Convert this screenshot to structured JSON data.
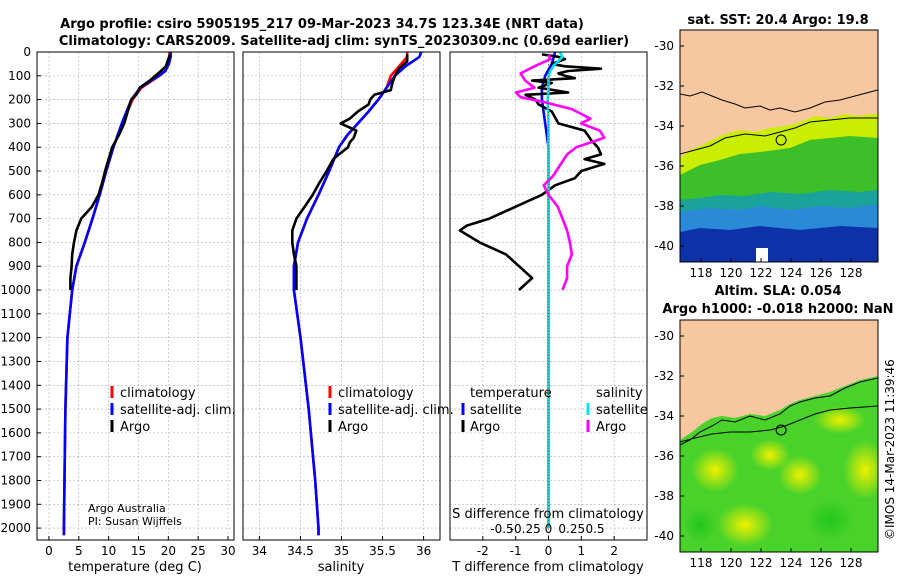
{
  "header": {
    "title_line1": "Argo profile: csiro 5905195_217 09-Mar-2023 34.7S 123.34E (NRT data)",
    "title_line2": "Climatology: CARS2009. Satellite-adj clim: synTS_20230309.nc (0.69d earlier)"
  },
  "depth_ticks": [
    0,
    100,
    200,
    300,
    400,
    500,
    600,
    700,
    800,
    900,
    1000,
    1100,
    1200,
    1300,
    1400,
    1500,
    1600,
    1700,
    1800,
    1900,
    2000
  ],
  "credits": {
    "line1": "Argo Australia",
    "line2": "PI: Susan Wijffels"
  },
  "colors": {
    "climatology": "#ff0000",
    "satellite": "#0000ff",
    "argo": "#000000",
    "argo_salinity_diff": "#ff00ff",
    "sat_salinity_diff": "#00e5ee",
    "land": "#f7c8a0"
  },
  "chart_data": [
    {
      "type": "line",
      "name": "temperature",
      "xlabel": "temperature (deg C)",
      "ylabel": "depth",
      "xlim": [
        -2,
        31
      ],
      "ylim": [
        2050,
        0
      ],
      "xticks": [
        0,
        5,
        10,
        15,
        20,
        25,
        30
      ],
      "legend": [
        "climatology",
        "satellite-adj. clim.",
        "Argo"
      ],
      "series": [
        {
          "name": "climatology",
          "color": "#ff0000",
          "depth": [
            0,
            20,
            50,
            80,
            100,
            150,
            200,
            300,
            400,
            500,
            600,
            700,
            800,
            900,
            1000,
            1200,
            1500,
            1800,
            2000,
            2030
          ],
          "values": [
            20.2,
            20.2,
            20.0,
            19.5,
            18.5,
            15.5,
            14.0,
            12.3,
            10.8,
            9.6,
            8.5,
            7.3,
            6.0,
            4.6,
            3.9,
            3.1,
            2.75,
            2.6,
            2.5,
            2.5
          ]
        },
        {
          "name": "satellite-adj. clim.",
          "color": "#0000ff",
          "depth": [
            0,
            20,
            50,
            80,
            100,
            150,
            200,
            300,
            400,
            500,
            600,
            700,
            800,
            900,
            1000,
            1200,
            1500,
            1800,
            2000,
            2030
          ],
          "values": [
            20.4,
            20.4,
            20.1,
            19.5,
            18.4,
            15.3,
            13.8,
            12.2,
            10.8,
            9.6,
            8.5,
            7.3,
            6.0,
            4.6,
            3.9,
            3.1,
            2.75,
            2.6,
            2.5,
            2.5
          ]
        },
        {
          "name": "Argo",
          "color": "#000000",
          "depth": [
            10,
            30,
            60,
            90,
            120,
            150,
            180,
            200,
            250,
            300,
            350,
            400,
            450,
            500,
            550,
            600,
            650,
            700,
            750,
            800,
            850,
            900,
            950,
            1000
          ],
          "values": [
            20.3,
            20.0,
            19.6,
            18.3,
            16.9,
            15.2,
            14.6,
            13.8,
            13.2,
            12.6,
            11.7,
            10.6,
            10.0,
            9.4,
            8.9,
            8.3,
            7.2,
            5.4,
            4.6,
            4.2,
            3.9,
            3.8,
            3.6,
            3.6
          ]
        }
      ]
    },
    {
      "type": "line",
      "name": "salinity",
      "xlabel": "salinity",
      "xlim": [
        33.8,
        36.2
      ],
      "ylim": [
        2050,
        0
      ],
      "xticks": [
        34,
        34.5,
        35,
        35.5,
        36
      ],
      "legend": [
        "climatology",
        "satellite-adj. clim.",
        "Argo"
      ],
      "series": [
        {
          "name": "climatology",
          "color": "#ff0000",
          "depth": [
            0,
            20,
            60,
            100,
            150,
            200,
            250,
            300,
            350,
            400,
            500,
            600,
            700,
            800,
            900,
            1000,
            1200,
            1500,
            1800,
            2000,
            2030
          ],
          "values": [
            35.8,
            35.8,
            35.7,
            35.6,
            35.55,
            35.45,
            35.33,
            35.2,
            35.07,
            34.97,
            34.85,
            34.72,
            34.58,
            34.47,
            34.42,
            34.42,
            34.5,
            34.6,
            34.68,
            34.72,
            34.72
          ]
        },
        {
          "name": "satellite-adj. clim.",
          "color": "#0000ff",
          "depth": [
            0,
            20,
            60,
            100,
            150,
            200,
            250,
            300,
            350,
            400,
            500,
            600,
            700,
            800,
            900,
            1000,
            1200,
            1500,
            1800,
            2000,
            2030
          ],
          "values": [
            35.97,
            35.95,
            35.78,
            35.65,
            35.55,
            35.45,
            35.33,
            35.2,
            35.07,
            34.97,
            34.85,
            34.72,
            34.58,
            34.47,
            34.42,
            34.42,
            34.5,
            34.6,
            34.68,
            34.72,
            34.72
          ]
        },
        {
          "name": "Argo",
          "color": "#000000",
          "depth": [
            10,
            40,
            70,
            100,
            130,
            160,
            180,
            200,
            220,
            250,
            280,
            300,
            330,
            360,
            380,
            400,
            430,
            450,
            500,
            550,
            600,
            650,
            700,
            750,
            800,
            850,
            900,
            950,
            1000
          ],
          "values": [
            35.8,
            35.8,
            35.7,
            35.65,
            35.62,
            35.6,
            35.4,
            35.35,
            35.33,
            35.2,
            35.1,
            34.99,
            35.18,
            35.15,
            35.1,
            35.08,
            34.97,
            34.9,
            34.82,
            34.73,
            34.65,
            34.55,
            34.45,
            34.4,
            34.4,
            34.42,
            34.45,
            34.45,
            34.45
          ]
        }
      ]
    },
    {
      "type": "line",
      "name": "difference",
      "xlabel": "T difference from climatology",
      "xlabel2": "S difference from climatology",
      "xlim": [
        -3,
        3
      ],
      "ylim": [
        2050,
        0
      ],
      "xticks": [
        -2,
        -1,
        0,
        1,
        2
      ],
      "xticks2": [
        -0.5,
        -0.25,
        0,
        0.25,
        0.5
      ],
      "legend_headers": [
        "temperature",
        "salinity"
      ],
      "legend": [
        "satellite",
        "Argo",
        "satellite",
        "Argo"
      ],
      "series": [
        {
          "name": "temperature satellite",
          "color": "#0000ff",
          "depth": [
            0,
            50,
            100,
            150,
            200,
            300,
            400,
            500,
            600,
            800,
            1000,
            1500,
            2000
          ],
          "values": [
            0.2,
            0.1,
            -0.1,
            -0.2,
            -0.2,
            -0.1,
            0,
            0,
            0,
            0,
            0,
            0,
            0
          ]
        },
        {
          "name": "temperature Argo",
          "color": "#000000",
          "depth": [
            10,
            20,
            30,
            50,
            60,
            70,
            80,
            90,
            100,
            110,
            120,
            130,
            150,
            170,
            180,
            200,
            220,
            250,
            300,
            330,
            350,
            370,
            400,
            430,
            450,
            470,
            500,
            530,
            560,
            600,
            650,
            700,
            730,
            750,
            800,
            850,
            900,
            950,
            1000
          ],
          "values": [
            -0.2,
            0.3,
            0.5,
            0.1,
            0.5,
            1.6,
            0.6,
            0.3,
            0.5,
            0.8,
            -0.5,
            0.1,
            -0.3,
            0.6,
            -0.7,
            -0.4,
            -0.3,
            0.1,
            0.3,
            1.1,
            1.2,
            1.3,
            1.5,
            1.6,
            1.1,
            1.7,
            1.0,
            0.8,
            0.2,
            -0.2,
            -1.0,
            -1.8,
            -2.5,
            -2.7,
            -2.1,
            -1.3,
            -0.9,
            -0.5,
            -0.9
          ]
        },
        {
          "name": "salinity satellite",
          "color": "#00e5ee",
          "depth": [
            0,
            20,
            40,
            60,
            80,
            100,
            150,
            200,
            300,
            400,
            500,
            600,
            700,
            800,
            900,
            1000,
            1500,
            2000
          ],
          "values": [
            0.12,
            0.15,
            0.1,
            0.05,
            0.02,
            0.0,
            0.0,
            -0.01,
            0,
            0,
            0,
            0,
            0,
            0,
            0,
            0,
            0,
            0
          ]
        },
        {
          "name": "salinity Argo",
          "color": "#ff00ff",
          "depth": [
            10,
            30,
            60,
            90,
            120,
            150,
            170,
            190,
            210,
            240,
            260,
            280,
            300,
            330,
            360,
            380,
            400,
            430,
            460,
            490,
            520,
            560,
            600,
            650,
            700,
            750,
            800,
            850,
            900,
            950,
            1000
          ],
          "values": [
            0.0,
            0.02,
            -0.15,
            -0.3,
            -0.25,
            -0.15,
            -0.35,
            -0.3,
            -0.05,
            0.25,
            0.35,
            0.45,
            0.35,
            0.55,
            0.6,
            0.45,
            0.3,
            0.2,
            0.15,
            0.1,
            0.05,
            -0.05,
            0,
            0.1,
            0.15,
            0.2,
            0.23,
            0.25,
            0.2,
            0.2,
            0.15
          ]
        }
      ]
    },
    {
      "type": "heatmap",
      "name": "sst-map",
      "title": "sat. SST: 20.4 Argo: 19.8",
      "xlim": [
        116.6,
        129.8
      ],
      "ylim": [
        -40.8,
        -29.2
      ],
      "xticks": [
        118,
        120,
        122,
        124,
        126,
        128
      ],
      "yticks": [
        -30,
        -32,
        -34,
        -36,
        -38,
        -40
      ],
      "float_position": {
        "lon": 123.34,
        "lat": -34.7
      }
    },
    {
      "type": "heatmap",
      "name": "sla-map",
      "title": "Altim. SLA: 0.054",
      "subtitle": "Argo h1000: -0.018 h2000: NaN",
      "xlim": [
        116.6,
        129.8
      ],
      "ylim": [
        -40.8,
        -29.2
      ],
      "xticks": [
        118,
        120,
        122,
        124,
        126,
        128
      ],
      "yticks": [
        -30,
        -32,
        -34,
        -36,
        -38,
        -40
      ],
      "float_position": {
        "lon": 123.34,
        "lat": -34.7
      }
    }
  ],
  "timestamp": "©IMOS 14-Mar-2023 11:39:46"
}
